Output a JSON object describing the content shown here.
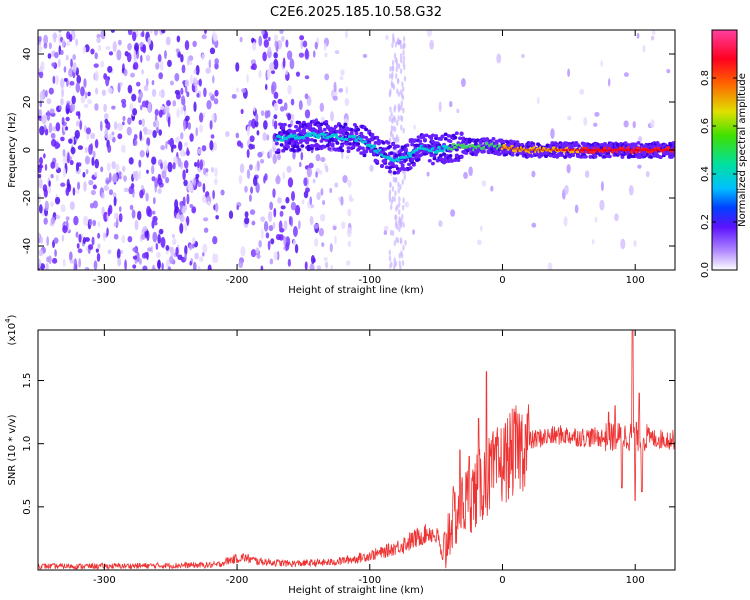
{
  "figure": {
    "title": "C2E6.2025.185.10.58.G32"
  },
  "chart_data": [
    {
      "type": "heatmap",
      "xlabel": "Height of straight line (km)",
      "ylabel": "Frequency (Hz)",
      "xlim": [
        -350,
        130
      ],
      "ylim": [
        -50,
        50
      ],
      "xticks": [
        -300,
        -200,
        -100,
        0,
        100
      ],
      "yticks": [
        -40,
        -20,
        0,
        20,
        40
      ],
      "colorbar": {
        "label": "Normalized spectral amplitude",
        "range": [
          0,
          1
        ],
        "ticks": [
          0.0,
          0.2,
          0.4,
          0.6,
          0.8
        ]
      },
      "ridge": [
        [
          -165,
          5
        ],
        [
          -150,
          6
        ],
        [
          -130,
          6
        ],
        [
          -115,
          5
        ],
        [
          -105,
          4
        ],
        [
          -95,
          0
        ],
        [
          -85,
          -3
        ],
        [
          -78,
          -4
        ],
        [
          -70,
          -2
        ],
        [
          -60,
          1
        ],
        [
          -50,
          0
        ],
        [
          -40,
          1
        ],
        [
          -30,
          2
        ],
        [
          -20,
          1
        ],
        [
          -10,
          2
        ],
        [
          0,
          1
        ],
        [
          20,
          0
        ],
        [
          50,
          0
        ],
        [
          100,
          0
        ],
        [
          130,
          0
        ]
      ]
    },
    {
      "type": "line",
      "xlabel": "Height of straight line (km)",
      "ylabel": "SNR (10 * v/v)",
      "yunit_label": "(x10",
      "yunit_exp": "4",
      "yunit_close": ")",
      "xlim": [
        -350,
        130
      ],
      "ylim": [
        0,
        1.9
      ],
      "xticks": [
        -300,
        -200,
        -100,
        0,
        100
      ],
      "yticks": [
        0.5,
        1.0,
        1.5
      ],
      "ytick_labels": [
        "0.5",
        "1.0",
        "1.5"
      ],
      "color": "#ee3333",
      "envelope": [
        [
          -350,
          0.03
        ],
        [
          -300,
          0.03
        ],
        [
          -215,
          0.04
        ],
        [
          -205,
          0.08
        ],
        [
          -195,
          0.1
        ],
        [
          -185,
          0.07
        ],
        [
          -160,
          0.05
        ],
        [
          -130,
          0.06
        ],
        [
          -110,
          0.09
        ],
        [
          -90,
          0.14
        ],
        [
          -75,
          0.2
        ],
        [
          -65,
          0.25
        ],
        [
          -55,
          0.3
        ],
        [
          -48,
          0.25
        ],
        [
          -45,
          0.05
        ],
        [
          -40,
          0.35
        ],
        [
          -30,
          0.52
        ],
        [
          -20,
          0.62
        ],
        [
          -10,
          0.75
        ],
        [
          0,
          0.85
        ],
        [
          10,
          0.95
        ],
        [
          20,
          1.02
        ],
        [
          30,
          1.05
        ],
        [
          45,
          1.07
        ],
        [
          60,
          1.05
        ],
        [
          80,
          1.05
        ],
        [
          95,
          1.06
        ],
        [
          105,
          1.05
        ],
        [
          115,
          1.04
        ],
        [
          130,
          1.03
        ]
      ],
      "spikes": [
        [
          -12,
          1.57
        ],
        [
          -18,
          1.2
        ],
        [
          -32,
          0.95
        ],
        [
          -5,
          1.05
        ],
        [
          -25,
          0.9
        ],
        [
          85,
          1.3
        ],
        [
          90,
          0.65
        ],
        [
          98,
          1.95
        ],
        [
          100,
          0.55
        ],
        [
          103,
          1.4
        ],
        [
          105,
          0.62
        ],
        [
          80,
          1.25
        ]
      ]
    }
  ]
}
